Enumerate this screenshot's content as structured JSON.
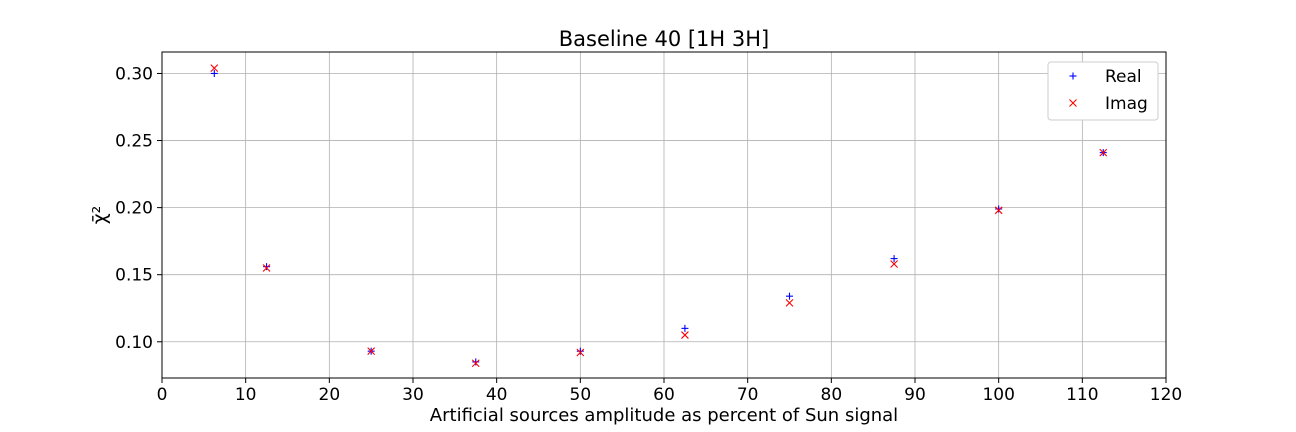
{
  "chart_data": {
    "type": "scatter",
    "title": "Baseline 40 [1H 3H]",
    "xlabel": "Artificial sources amplitude as percent of Sun signal",
    "ylabel": "χ̄²",
    "xlim": [
      0,
      120
    ],
    "ylim": [
      0.073,
      0.316
    ],
    "xticks": [
      0,
      10,
      20,
      30,
      40,
      50,
      60,
      70,
      80,
      90,
      100,
      110,
      120
    ],
    "yticks": [
      0.1,
      0.15,
      0.2,
      0.25,
      0.3
    ],
    "xtick_labels": [
      "0",
      "10",
      "20",
      "30",
      "40",
      "50",
      "60",
      "70",
      "80",
      "90",
      "100",
      "110",
      "120"
    ],
    "ytick_labels": [
      "0.10",
      "0.15",
      "0.20",
      "0.25",
      "0.30"
    ],
    "grid": true,
    "legend_position": "top-right",
    "x": [
      6.25,
      12.5,
      25,
      37.5,
      50,
      62.5,
      75,
      87.5,
      100,
      112.5
    ],
    "series": [
      {
        "name": "Real",
        "marker": "plus",
        "color": "#0000ff",
        "values": [
          0.3,
          0.156,
          0.093,
          0.085,
          0.093,
          0.11,
          0.134,
          0.162,
          0.199,
          0.241
        ]
      },
      {
        "name": "Imag",
        "marker": "x",
        "color": "#ff0000",
        "values": [
          0.304,
          0.155,
          0.093,
          0.084,
          0.092,
          0.105,
          0.129,
          0.158,
          0.198,
          0.241
        ]
      }
    ]
  }
}
